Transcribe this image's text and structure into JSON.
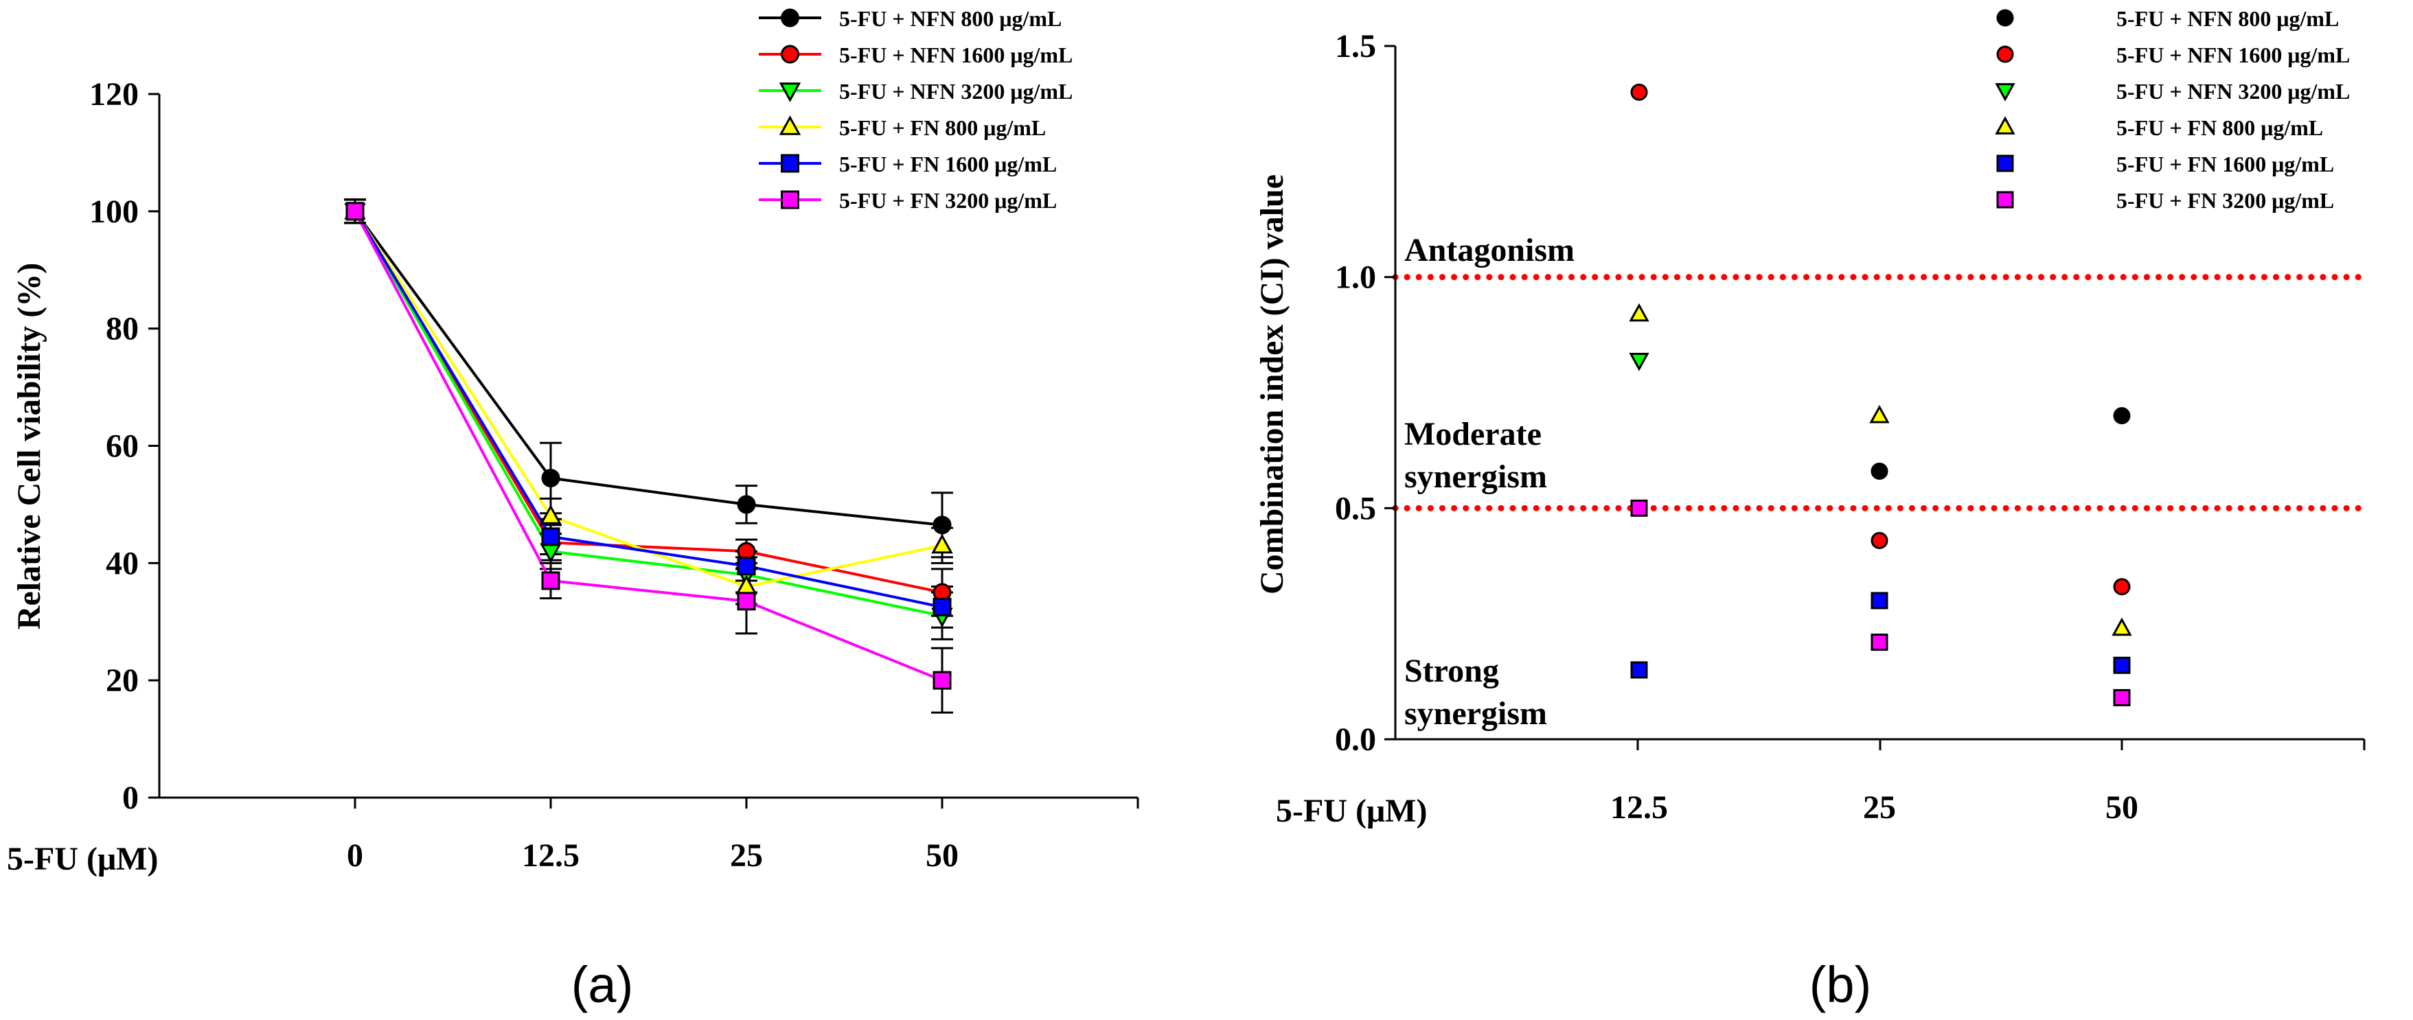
{
  "chart_data": [
    {
      "type": "line",
      "panel_label": "(a)",
      "ylabel": "Relative Cell viability (%)",
      "xlabel": "5-FU (μM)",
      "categories": [
        "0",
        "12.5",
        "25",
        "50"
      ],
      "ylim": [
        0,
        120
      ],
      "yticks": [
        "0",
        "20",
        "40",
        "60",
        "80",
        "100",
        "120"
      ],
      "legend_position": "top-right",
      "series": [
        {
          "name": "5-FU + NFN 800 μg/mL",
          "color": "#000000",
          "marker": "circle",
          "values": [
            100,
            54.5,
            50,
            46.5
          ],
          "errors": [
            2,
            6,
            3.2,
            5.5
          ]
        },
        {
          "name": "5-FU + NFN 1600 μg/mL",
          "color": "#ff0000",
          "marker": "circle",
          "values": [
            100,
            43.5,
            42,
            35
          ],
          "errors": [
            2,
            3,
            2,
            4
          ]
        },
        {
          "name": "5-FU + NFN 3200 μg/mL",
          "color": "#00ff00",
          "marker": "triangle-down",
          "values": [
            100,
            42,
            38,
            31
          ],
          "errors": [
            2,
            3,
            3,
            4
          ]
        },
        {
          "name": "5-FU + FN 800 μg/mL",
          "color": "#ffff00",
          "marker": "triangle-up",
          "values": [
            100,
            48,
            36,
            43
          ],
          "errors": [
            2,
            3,
            3,
            3
          ]
        },
        {
          "name": "5-FU + FN 1600 μg/mL",
          "color": "#0000ff",
          "marker": "square",
          "values": [
            100,
            44.5,
            39.5,
            32.5
          ],
          "errors": [
            2,
            3,
            2.5,
            3.5
          ]
        },
        {
          "name": "5-FU + FN 3200 μg/mL",
          "color": "#ff00ff",
          "marker": "square",
          "values": [
            100,
            37,
            33.5,
            20
          ],
          "errors": [
            2,
            3,
            5.5,
            5.5
          ]
        }
      ]
    },
    {
      "type": "scatter",
      "panel_label": "(b)",
      "ylabel": "Combination index (CI) value",
      "xlabel": "5-FU (μM)",
      "categories": [
        "12.5",
        "25",
        "50"
      ],
      "ylim": [
        0,
        1.5
      ],
      "yticks": [
        "0.0",
        "0.5",
        "1.0",
        "1.5"
      ],
      "legend_position": "top-right",
      "reference_lines": [
        {
          "value": 1.0,
          "color": "#ff0000",
          "style": "dotted"
        },
        {
          "value": 0.5,
          "color": "#ff0000",
          "style": "dotted"
        }
      ],
      "region_labels": [
        {
          "lines": [
            "Antagonism"
          ]
        },
        {
          "lines": [
            "Moderate",
            "synergism"
          ]
        },
        {
          "lines": [
            "Strong",
            "synergism"
          ]
        }
      ],
      "series": [
        {
          "name": "5-FU + NFN 800 μg/mL",
          "color": "#000000",
          "marker": "circle",
          "values": [
            null,
            0.58,
            0.7
          ]
        },
        {
          "name": "5-FU + NFN 1600 μg/mL",
          "color": "#ff0000",
          "marker": "circle",
          "values": [
            1.4,
            0.43,
            0.33
          ]
        },
        {
          "name": "5-FU + NFN 3200 μg/mL",
          "color": "#00ff00",
          "marker": "triangle-down",
          "values": [
            0.82,
            null,
            null
          ]
        },
        {
          "name": "5-FU + FN 800 μg/mL",
          "color": "#ffff00",
          "marker": "triangle-up",
          "values": [
            0.92,
            0.7,
            0.24
          ]
        },
        {
          "name": "5-FU + FN 1600 μg/mL",
          "color": "#0000ff",
          "marker": "square",
          "values": [
            0.15,
            0.3,
            0.16
          ]
        },
        {
          "name": "5-FU + FN 3200 μg/mL",
          "color": "#ff00ff",
          "marker": "square",
          "values": [
            0.5,
            0.21,
            0.09
          ]
        }
      ]
    }
  ]
}
